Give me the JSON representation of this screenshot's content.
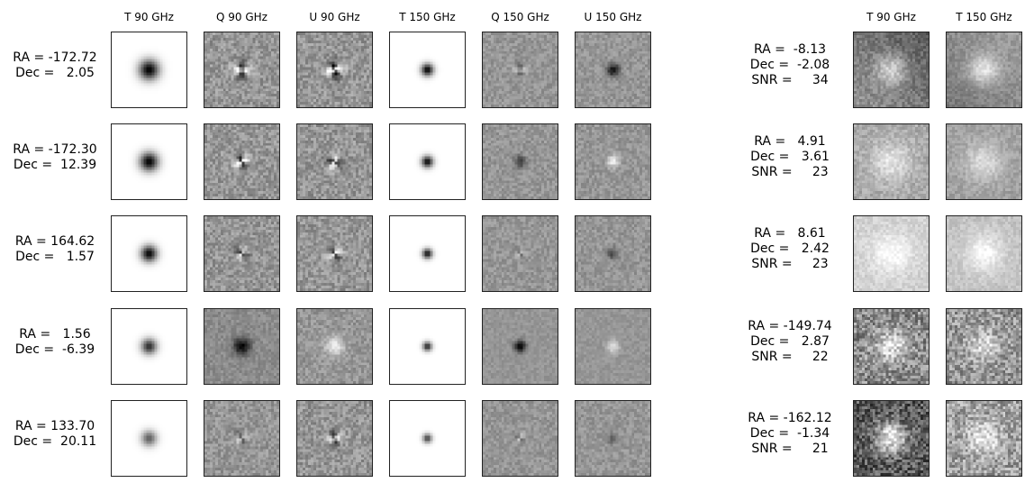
{
  "left_headers": [
    "T 90 GHz",
    "Q 90 GHz",
    "U 90 GHz",
    "T 150 GHz",
    "Q 150 GHz",
    "U 150 GHz"
  ],
  "right_headers": [
    "T 90 GHz",
    "T 150 GHz"
  ],
  "left_rows": [
    {
      "ra_line": "RA = -172.72",
      "dec_line": "Dec =   2.05"
    },
    {
      "ra_line": "RA = -172.30",
      "dec_line": "Dec =  12.39"
    },
    {
      "ra_line": "RA = 164.62",
      "dec_line": "Dec =   1.57"
    },
    {
      "ra_line": "RA =   1.56",
      "dec_line": "Dec =  -6.39"
    },
    {
      "ra_line": "RA = 133.70",
      "dec_line": "Dec =  20.11"
    }
  ],
  "right_rows": [
    {
      "ra_line": "RA =  -8.13",
      "dec_line": "Dec =  -2.08",
      "snr_line": "SNR =     34"
    },
    {
      "ra_line": "RA =   4.91",
      "dec_line": "Dec =   3.61",
      "snr_line": "SNR =     23"
    },
    {
      "ra_line": "RA =   8.61",
      "dec_line": "Dec =   2.42",
      "snr_line": "SNR =     23"
    },
    {
      "ra_line": "RA = -149.74",
      "dec_line": "Dec =   2.87",
      "snr_line": "SNR =     22"
    },
    {
      "ra_line": "RA = -162.12",
      "dec_line": "Dec =  -1.34",
      "snr_line": "SNR =     21"
    }
  ],
  "colors": {
    "background": "#ffffff",
    "tile_border": "#222222",
    "colormap": "grayscale"
  }
}
